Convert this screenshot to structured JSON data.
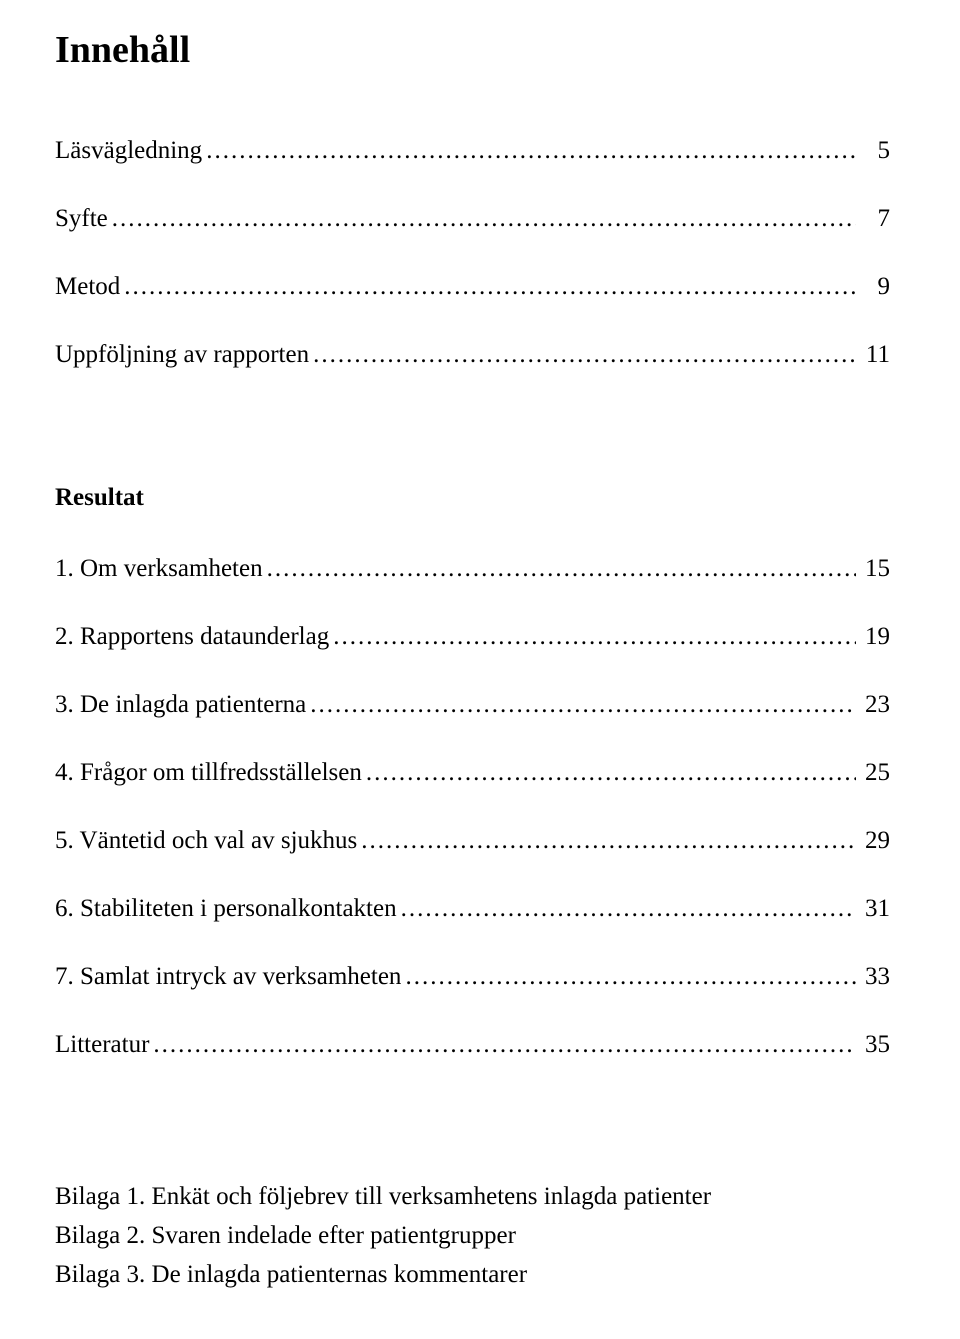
{
  "title": "Innehåll",
  "dots": ".....................................................................................................................................................................................................................",
  "entries_block1": [
    {
      "label": "Läsvägledning",
      "page": "5"
    },
    {
      "label": "Syfte",
      "page": "7"
    },
    {
      "label": "Metod",
      "page": "9"
    },
    {
      "label": "Uppföljning av rapporten",
      "page": "11"
    }
  ],
  "resultat_heading": "Resultat",
  "entries_block2": [
    {
      "label": "1. Om verksamheten",
      "page": "15"
    },
    {
      "label": "2. Rapportens dataunderlag",
      "page": "19"
    },
    {
      "label": "3. De inlagda patienterna",
      "page": "23"
    },
    {
      "label": "4. Frågor om tillfredsställelsen",
      "page": "25"
    },
    {
      "label": "5. Väntetid och val av sjukhus",
      "page": "29"
    },
    {
      "label": "6. Stabiliteten i personalkontakten",
      "page": "31"
    },
    {
      "label": "7. Samlat intryck av verksamheten",
      "page": "33"
    }
  ],
  "litteratur": {
    "label": "Litteratur",
    "page": "35"
  },
  "appendix": [
    "Bilaga 1. Enkät och följebrev till verksamhetens inlagda patienter",
    "Bilaga 2. Svaren indelade efter patientgrupper",
    "Bilaga 3. De inlagda patienternas kommentarer"
  ]
}
